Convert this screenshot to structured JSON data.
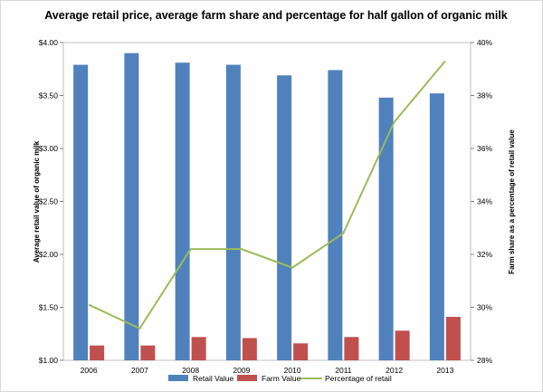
{
  "chart_data": {
    "type": "bar",
    "title": "Average retail price, average farm share and percentage for half gallon of organic milk",
    "categories": [
      "2006",
      "2007",
      "2008",
      "2009",
      "2010",
      "2011",
      "2012",
      "2013"
    ],
    "series": [
      {
        "name": "Retail Value",
        "type": "bar",
        "axis": "left",
        "color": "#4F81BD",
        "values": [
          3.79,
          3.9,
          3.81,
          3.79,
          3.69,
          3.74,
          3.48,
          3.52
        ]
      },
      {
        "name": "Farm Value",
        "type": "bar",
        "axis": "left",
        "color": "#C0504D",
        "values": [
          1.14,
          1.14,
          1.22,
          1.21,
          1.16,
          1.22,
          1.28,
          1.41
        ]
      },
      {
        "name": "Percentage of retail",
        "type": "line",
        "axis": "right",
        "color": "#9BBB59",
        "values": [
          30.1,
          29.2,
          32.2,
          32.2,
          31.5,
          32.8,
          37.0,
          39.3
        ]
      }
    ],
    "ylabel": "Average retail value of organic milk",
    "y2label": "Farm share as a percentage of retail value",
    "ylim": [
      1.0,
      4.0
    ],
    "y2lim": [
      28,
      40
    ],
    "yticks": [
      "$1.00",
      "$1.50",
      "$2.00",
      "$2.50",
      "$3.00",
      "$3.50",
      "$4.00"
    ],
    "y2ticks": [
      "28%",
      "30%",
      "32%",
      "34%",
      "36%",
      "38%",
      "40%"
    ],
    "grid": false,
    "legend_position": "bottom"
  }
}
